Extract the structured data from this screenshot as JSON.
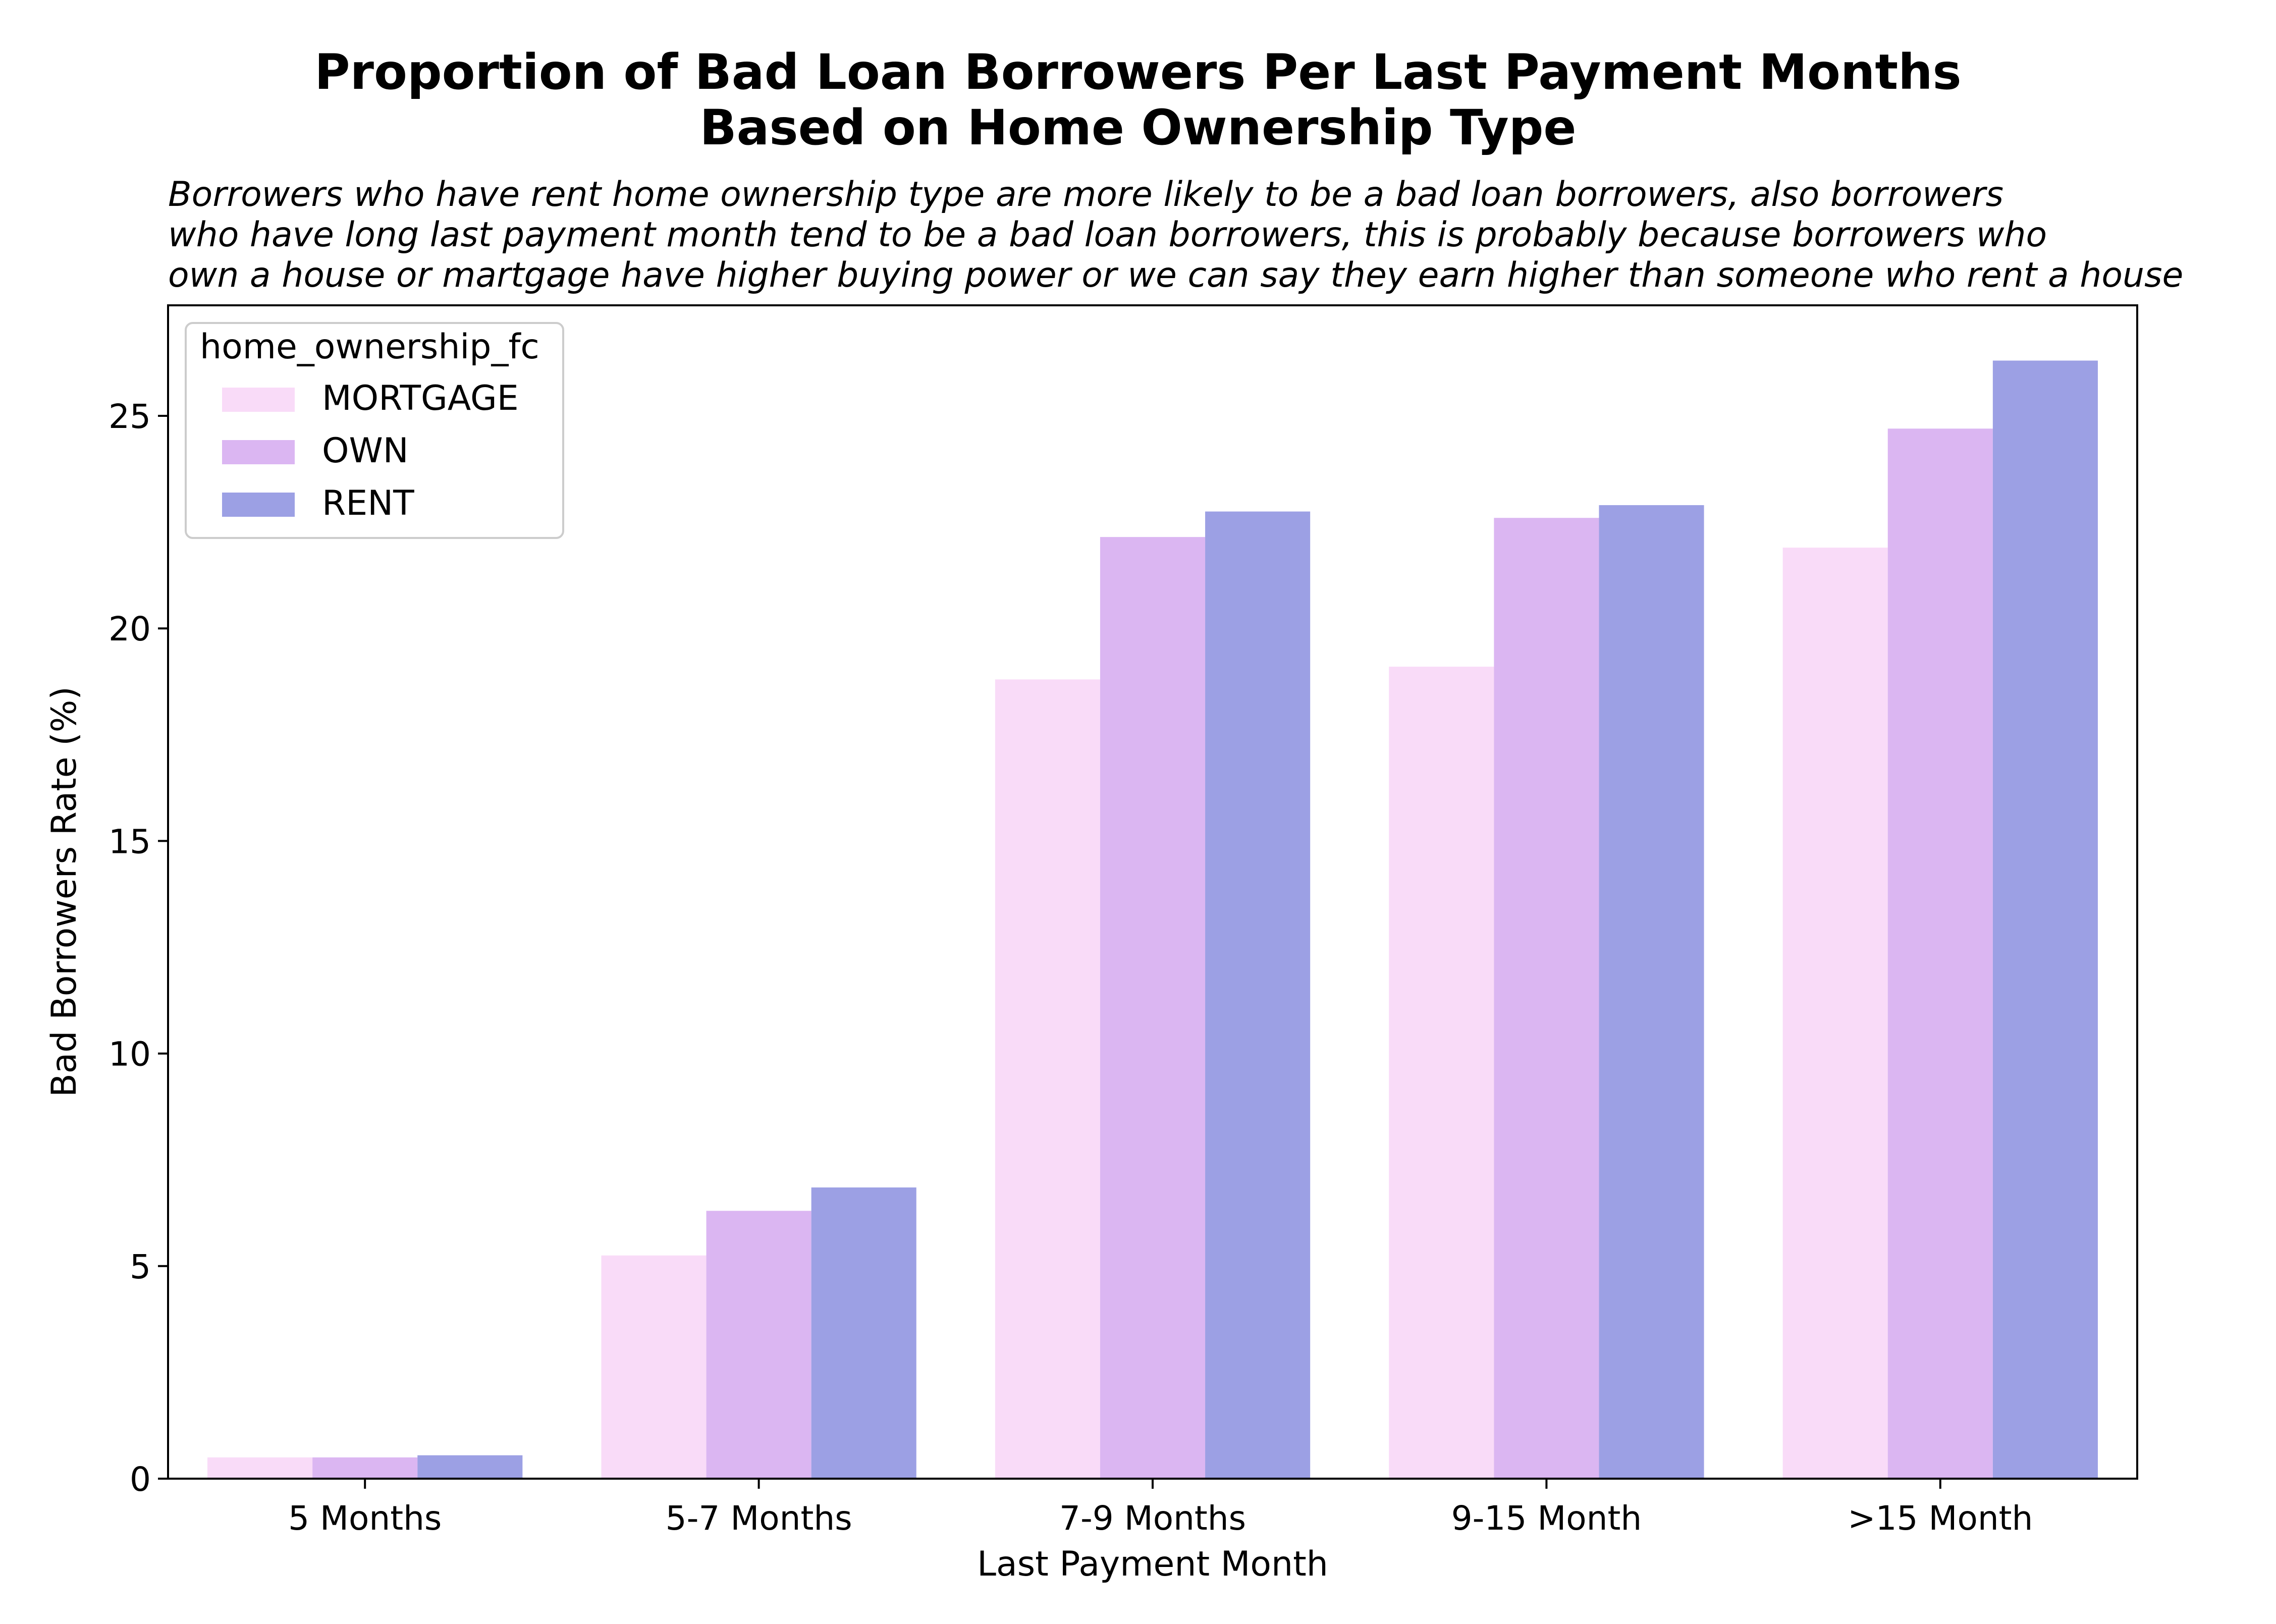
{
  "title": [
    "Proportion of Bad Loan Borrowers Per Last Payment Months",
    "Based on Home Ownership Type"
  ],
  "subtitle": [
    "Borrowers who have rent home ownership type are more likely to be a bad loan borrowers, also borrowers",
    "who have long last payment month tend to be a bad loan borrowers, this is probably because borrowers who",
    "own a house or martgage have higher buying power or we can say they earn higher than someone who rent a house"
  ],
  "chart_data": {
    "type": "bar",
    "categories": [
      "5 Months",
      "5-7 Months",
      "7-9 Months",
      "9-15 Month",
      ">15 Month"
    ],
    "series": [
      {
        "name": "MORTGAGE",
        "color": "#f9dbf8",
        "values": [
          0.5,
          5.25,
          18.8,
          19.1,
          21.9
        ]
      },
      {
        "name": "OWN",
        "color": "#dbb6f2",
        "values": [
          0.5,
          6.3,
          22.15,
          22.6,
          24.7
        ]
      },
      {
        "name": "RENT",
        "color": "#9ca0e4",
        "values": [
          0.55,
          6.85,
          22.75,
          22.9,
          26.3
        ]
      }
    ],
    "xlabel": "Last Payment Month",
    "ylabel": "Bad Borrowers Rate (%)",
    "ylim": [
      0,
      27.6
    ],
    "yticks": [
      0,
      5,
      10,
      15,
      20,
      25
    ],
    "legend": {
      "title": "home_ownership_fc",
      "placement": "top-left"
    },
    "grid": false
  }
}
